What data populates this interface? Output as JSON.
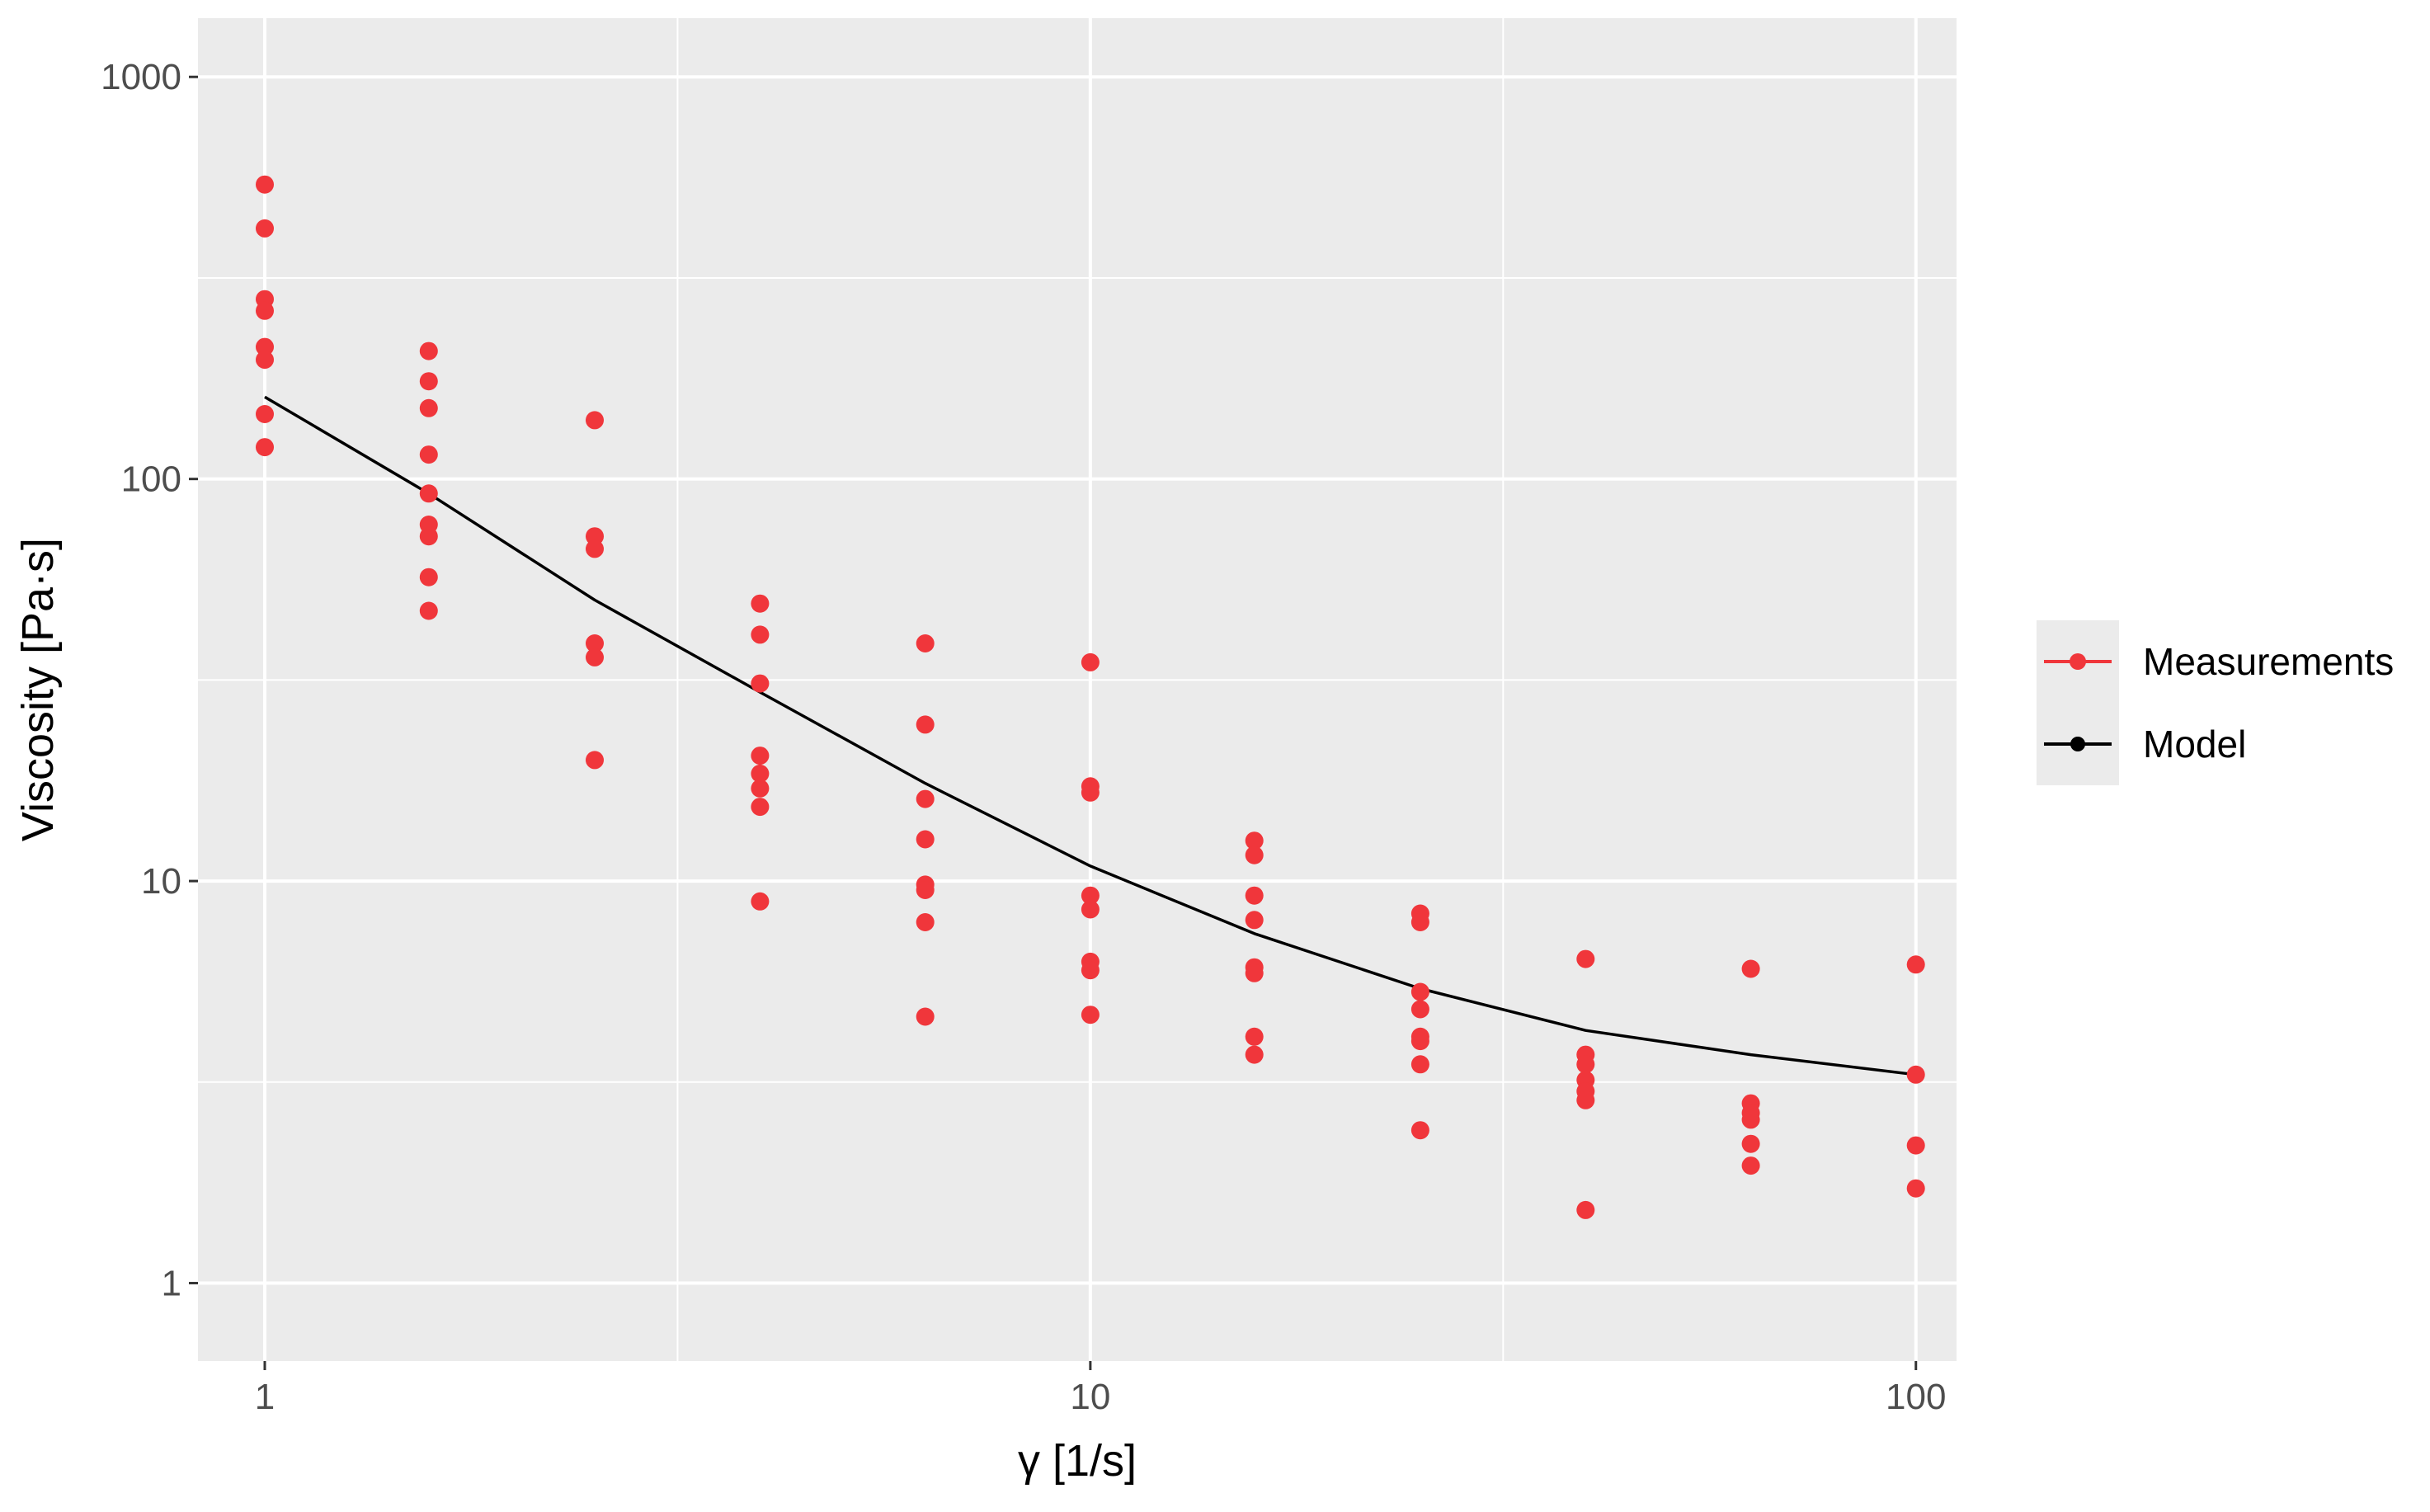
{
  "chart_data": {
    "type": "scatter",
    "title": "",
    "xlabel": "γ [1/s]",
    "ylabel": "Viscosity [Pa·s]",
    "xscale": "log10",
    "yscale": "log10",
    "xlim": [
      0.83,
      112
    ],
    "ylim": [
      0.64,
      1400
    ],
    "x_ticks": [
      1,
      10,
      100
    ],
    "x_tick_labels": [
      "1",
      "10",
      "100"
    ],
    "y_ticks": [
      1,
      10,
      100,
      1000
    ],
    "y_tick_labels": [
      "1",
      "10",
      "100",
      "1000"
    ],
    "grid": true,
    "legend_position": "right",
    "colors": {
      "panel_background": "#ebebeb",
      "grid": "#ffffff",
      "measurements": "#f0363b",
      "model": "#000000",
      "axis_text": "#4d4d4d",
      "axis_title": "#000000"
    },
    "legend": [
      {
        "label": "Measurements",
        "color": "#f0363b"
      },
      {
        "label": "Model",
        "color": "#000000"
      }
    ],
    "series": [
      {
        "name": "Measurements",
        "kind": "points",
        "points": [
          [
            1,
            540
          ],
          [
            1,
            420
          ],
          [
            1,
            280
          ],
          [
            1,
            262
          ],
          [
            1,
            213
          ],
          [
            1,
            198
          ],
          [
            1,
            145
          ],
          [
            1,
            120
          ],
          [
            1.58,
            208
          ],
          [
            1.58,
            175
          ],
          [
            1.58,
            150
          ],
          [
            1.58,
            115
          ],
          [
            1.58,
            92
          ],
          [
            1.58,
            77
          ],
          [
            1.58,
            72
          ],
          [
            1.58,
            57
          ],
          [
            1.58,
            47
          ],
          [
            2.51,
            140
          ],
          [
            2.51,
            72
          ],
          [
            2.51,
            67
          ],
          [
            2.51,
            39
          ],
          [
            2.51,
            36
          ],
          [
            2.51,
            20
          ],
          [
            3.98,
            49
          ],
          [
            3.98,
            41
          ],
          [
            3.98,
            31
          ],
          [
            3.98,
            20.5
          ],
          [
            3.98,
            18.5
          ],
          [
            3.98,
            17
          ],
          [
            3.98,
            15.3
          ],
          [
            3.98,
            8.9
          ],
          [
            6.31,
            39
          ],
          [
            6.31,
            24.5
          ],
          [
            6.31,
            16
          ],
          [
            6.31,
            12.7
          ],
          [
            6.31,
            9.8
          ],
          [
            6.31,
            9.5
          ],
          [
            6.31,
            7.9
          ],
          [
            6.31,
            4.6
          ],
          [
            10,
            35
          ],
          [
            10,
            17.2
          ],
          [
            10,
            16.6
          ],
          [
            10,
            9.2
          ],
          [
            10,
            8.5
          ],
          [
            10,
            6.3
          ],
          [
            10,
            6.0
          ],
          [
            10,
            4.65
          ],
          [
            15.8,
            12.6
          ],
          [
            15.8,
            11.6
          ],
          [
            15.8,
            9.2
          ],
          [
            15.8,
            8.0
          ],
          [
            15.8,
            6.1
          ],
          [
            15.8,
            5.9
          ],
          [
            15.8,
            4.1
          ],
          [
            15.8,
            3.7
          ],
          [
            25.1,
            8.3
          ],
          [
            25.1,
            7.9
          ],
          [
            25.1,
            5.3
          ],
          [
            25.1,
            4.8
          ],
          [
            25.1,
            4.1
          ],
          [
            25.1,
            4.0
          ],
          [
            25.1,
            3.5
          ],
          [
            25.1,
            2.4
          ],
          [
            39.8,
            6.4
          ],
          [
            39.8,
            3.7
          ],
          [
            39.8,
            3.5
          ],
          [
            39.8,
            3.2
          ],
          [
            39.8,
            3.0
          ],
          [
            39.8,
            2.85
          ],
          [
            39.8,
            1.52
          ],
          [
            63.1,
            6.05
          ],
          [
            63.1,
            2.8
          ],
          [
            63.1,
            2.65
          ],
          [
            63.1,
            2.55
          ],
          [
            63.1,
            2.22
          ],
          [
            63.1,
            1.96
          ],
          [
            100,
            6.2
          ],
          [
            100,
            3.3
          ],
          [
            100,
            2.2
          ],
          [
            100,
            1.72
          ]
        ]
      },
      {
        "name": "Model",
        "kind": "line",
        "points": [
          [
            1,
            160
          ],
          [
            1.58,
            92
          ],
          [
            2.51,
            50
          ],
          [
            3.98,
            29.5
          ],
          [
            6.31,
            17.5
          ],
          [
            10,
            10.9
          ],
          [
            15.8,
            7.4
          ],
          [
            25.1,
            5.4
          ],
          [
            39.8,
            4.25
          ],
          [
            63.1,
            3.7
          ],
          [
            100,
            3.3
          ]
        ]
      }
    ]
  }
}
